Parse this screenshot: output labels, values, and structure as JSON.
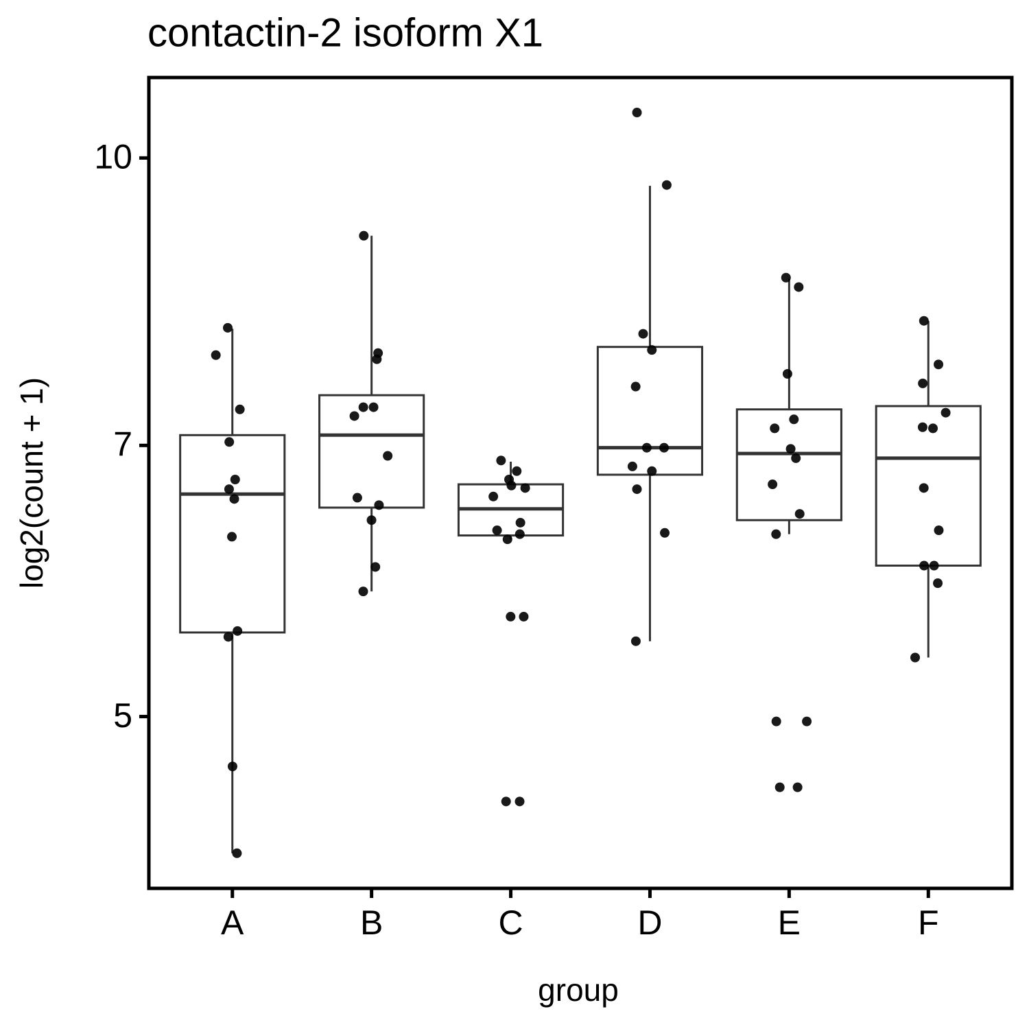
{
  "chart_data": {
    "type": "box",
    "title": "contactin-2 isoform X1",
    "x_label": "group",
    "y_label": "log2(count + 1)",
    "categories": [
      "A",
      "B",
      "C",
      "D",
      "E",
      "F"
    ],
    "y_scale": "log",
    "ylim": [
      4.04,
      11.05
    ],
    "yticks": [
      5,
      7,
      10
    ],
    "box_color": "#333333",
    "point_color": "#000000",
    "boxes": [
      {
        "low": 4.22,
        "q1": 5.55,
        "median": 6.59,
        "q3": 7.09,
        "high": 8.09
      },
      {
        "low": 5.84,
        "q1": 6.48,
        "median": 7.09,
        "q3": 7.45,
        "high": 9.08
      },
      {
        "low": 6.23,
        "q1": 6.26,
        "median": 6.47,
        "q3": 6.67,
        "high": 6.86
      },
      {
        "low": 5.49,
        "q1": 6.75,
        "median": 6.98,
        "q3": 7.91,
        "high": 9.66
      },
      {
        "low": 6.27,
        "q1": 6.38,
        "median": 6.93,
        "q3": 7.32,
        "high": 8.61
      },
      {
        "low": 5.38,
        "q1": 6.03,
        "median": 6.89,
        "q3": 7.35,
        "high": 8.17
      }
    ],
    "points": [
      [
        8.1,
        7.83,
        7.32,
        7.03,
        6.71,
        6.63,
        6.55,
        6.25,
        5.56,
        5.52,
        4.7,
        4.22
      ],
      [
        9.08,
        7.85,
        7.79,
        7.34,
        7.34,
        7.26,
        6.91,
        6.56,
        6.5,
        6.38,
        6.02,
        5.84
      ],
      [
        6.87,
        6.78,
        6.71,
        6.66,
        6.64,
        6.57,
        6.36,
        6.3,
        6.27,
        6.23,
        5.66,
        5.66,
        4.5,
        4.5
      ],
      [
        10.58,
        9.67,
        8.04,
        7.88,
        7.53,
        6.98,
        6.98,
        6.82,
        6.78,
        6.63,
        6.28,
        5.49
      ],
      [
        8.62,
        8.52,
        7.65,
        7.23,
        7.15,
        6.97,
        6.89,
        6.67,
        6.43,
        6.27,
        4.97,
        4.97,
        4.58,
        4.58
      ],
      [
        8.17,
        7.74,
        7.56,
        7.29,
        7.16,
        7.15,
        6.64,
        6.3,
        6.03,
        6.03,
        5.9,
        5.38
      ]
    ]
  }
}
